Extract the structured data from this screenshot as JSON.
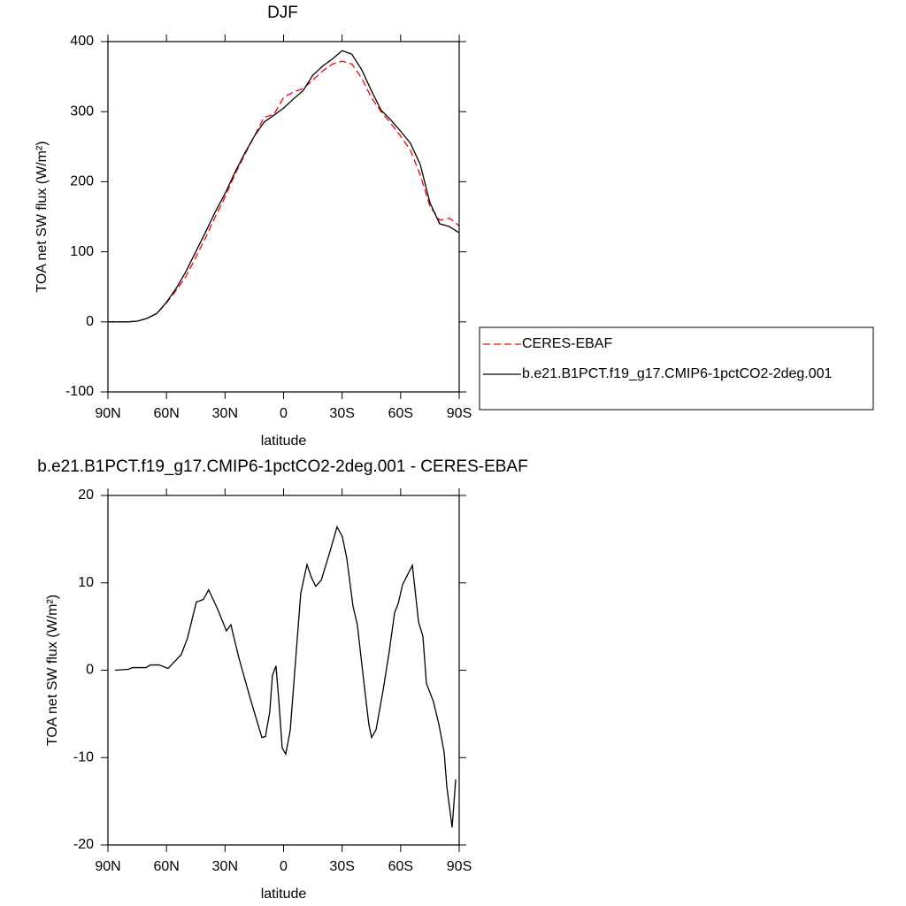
{
  "chart_data": [
    {
      "type": "line",
      "title": "DJF",
      "x_label": "latitude",
      "y_label": "TOA net SW flux (W/m²)",
      "x": [
        90,
        85,
        80,
        75,
        70,
        65,
        60,
        55,
        50,
        45,
        40,
        35,
        30,
        25,
        20,
        15,
        10,
        5,
        0,
        -5,
        -10,
        -15,
        -20,
        -25,
        -30,
        -35,
        -40,
        -45,
        -50,
        -55,
        -60,
        -65,
        -70,
        -75,
        -80,
        -85,
        -90
      ],
      "series": [
        {
          "name": "CERES-EBAF",
          "color": "#ff0000",
          "dashed": true,
          "values": [
            0,
            0,
            0,
            1,
            5,
            12,
            27,
            45,
            65,
            92,
            120,
            150,
            178,
            210,
            238,
            265,
            292,
            296,
            320,
            328,
            333,
            345,
            358,
            368,
            372,
            368,
            348,
            320,
            300,
            283,
            265,
            245,
            210,
            165,
            145,
            148,
            137
          ]
        },
        {
          "name": "b.e21.B1PCT.f19_g17.CMIP6-1pctCO2-2deg.001",
          "color": "#000000",
          "dashed": false,
          "values": [
            0,
            0,
            0,
            1,
            5,
            12,
            28,
            48,
            72,
            100,
            128,
            157,
            183,
            213,
            240,
            265,
            285,
            295,
            305,
            318,
            330,
            352,
            365,
            375,
            387,
            382,
            360,
            330,
            302,
            288,
            272,
            255,
            225,
            170,
            140,
            136,
            127
          ]
        }
      ],
      "xlim": [
        90,
        -90
      ],
      "xticks": [
        {
          "value": 90,
          "label": "90N"
        },
        {
          "value": 60,
          "label": "60N"
        },
        {
          "value": 30,
          "label": "30N"
        },
        0,
        {
          "value": -30,
          "label": "30S"
        },
        {
          "value": -60,
          "label": "60S"
        },
        {
          "value": -90,
          "label": "90S"
        }
      ],
      "ylim": [
        -100,
        400
      ],
      "yticks": [
        -100,
        0,
        100,
        200,
        300,
        400
      ],
      "legend": "right"
    },
    {
      "type": "line",
      "title": "b.e21.B1PCT.f19_g17.CMIP6-1pctCO2-2deg.001 - CERES-EBAF",
      "x_label": "latitude",
      "y_label": "TOA net SW flux (W/m²)",
      "x": [
        86.4,
        79.6,
        77.3,
        70.5,
        68.2,
        63.7,
        59.2,
        52.4,
        49.2,
        44.7,
        41.1,
        38.4,
        33.8,
        29.3,
        27.0,
        23.0,
        17.0,
        11.1,
        9.3,
        7.1,
        5.7,
        3.9,
        2.5,
        0.7,
        -1.1,
        -3.4,
        -8.8,
        -12.0,
        -14.3,
        -16.5,
        -19.3,
        -23.8,
        -27.4,
        -30.1,
        -32.4,
        -35.6,
        -37.8,
        -40.6,
        -43.7,
        -45.1,
        -47.4,
        -51.0,
        -54.2,
        -56.9,
        -58.7,
        -61.0,
        -66.0,
        -69.2,
        -71.4,
        -73.2,
        -76.8,
        -79.6,
        -82.3,
        -83.7,
        -86.4,
        -88.2
      ],
      "series": [
        {
          "color": "#000000",
          "dashed": false,
          "values": [
            0,
            0.1,
            0.3,
            0.3,
            0.6,
            0.6,
            0.2,
            1.8,
            3.7,
            7.8,
            8.1,
            9.2,
            7,
            4.5,
            5.2,
            1.5,
            -3.3,
            -7.7,
            -7.6,
            -4.8,
            -0.6,
            0.5,
            -3.3,
            -8.9,
            -9.6,
            -6.9,
            8.8,
            12.1,
            10.6,
            9.6,
            10.3,
            13.6,
            16.4,
            15.3,
            12.8,
            7.3,
            5.2,
            -0.3,
            -6.2,
            -7.7,
            -6.8,
            -2.3,
            2.2,
            6.6,
            7.6,
            9.8,
            12.0,
            5.5,
            3.9,
            -1.5,
            -3.6,
            -6.2,
            -9.4,
            -13.4,
            -18.0,
            -12.5
          ]
        }
      ],
      "xlim": [
        90,
        -90
      ],
      "xticks": [
        {
          "value": 90,
          "label": "90N"
        },
        {
          "value": 60,
          "label": "60N"
        },
        {
          "value": 30,
          "label": "30N"
        },
        0,
        {
          "value": -30,
          "label": "30S"
        },
        {
          "value": -60,
          "label": "60S"
        },
        {
          "value": -90,
          "label": "90S"
        }
      ],
      "ylim": [
        -20,
        20
      ],
      "yticks": [
        -20,
        -10,
        0,
        10,
        20
      ]
    }
  ]
}
